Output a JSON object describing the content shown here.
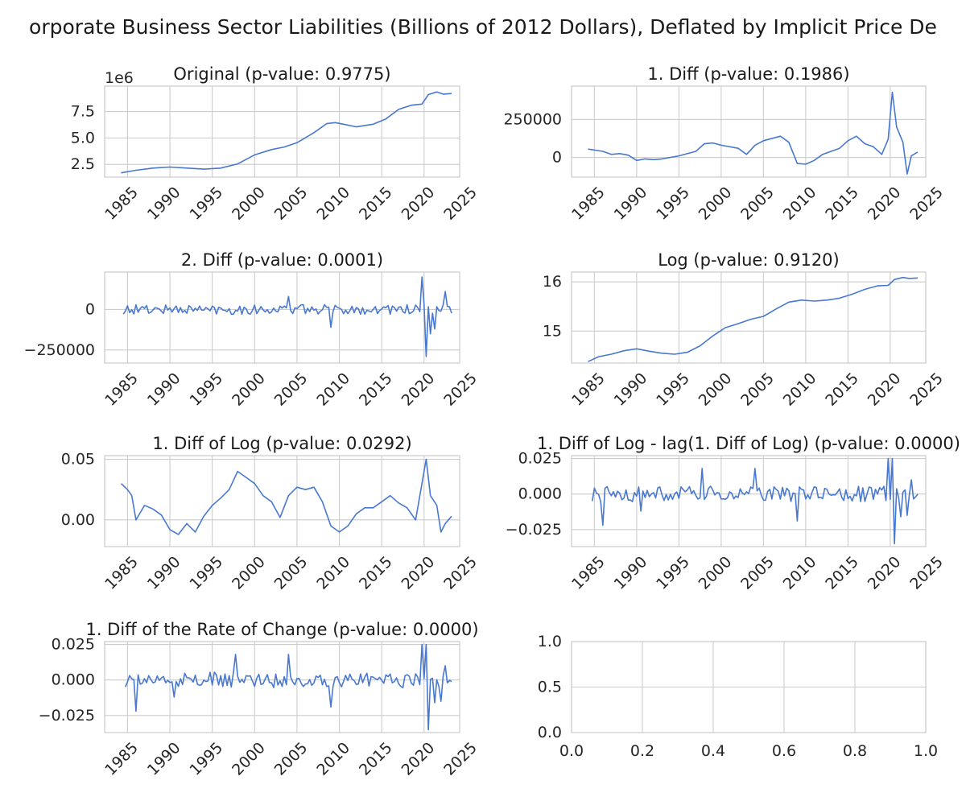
{
  "figure": {
    "suptitle": "orporate Business Sector Liabilities  (Billions of 2012 Dollars), Deflated by Implicit Price De",
    "line_color": "#4878cf",
    "grid_color": "#cccccc"
  },
  "chart_data": [
    {
      "type": "line",
      "title": "Original (p-value: 0.9775)",
      "x_range": [
        1984.25,
        2023.25
      ],
      "xlim": [
        1982.3,
        2024.2
      ],
      "ylim": [
        1300000,
        9900000
      ],
      "y_ticks": [
        2500000,
        5000000,
        7500000
      ],
      "y_tick_labels": [
        "2.5",
        "5.0",
        "7.5"
      ],
      "offset_text": "1e6",
      "x_ticks": [
        1985,
        1990,
        1995,
        2000,
        2005,
        2010,
        2015,
        2020,
        2025
      ],
      "x_tick_labels": [
        "1985",
        "1990",
        "1995",
        "2000",
        "2005",
        "2010",
        "2015",
        "2020",
        "2025"
      ],
      "series_points": [
        [
          1984.25,
          1700000
        ],
        [
          1986,
          1950000
        ],
        [
          1988,
          2150000
        ],
        [
          1990,
          2250000
        ],
        [
          1992,
          2150000
        ],
        [
          1994,
          2050000
        ],
        [
          1996,
          2150000
        ],
        [
          1998,
          2550000
        ],
        [
          2000,
          3400000
        ],
        [
          2002,
          3900000
        ],
        [
          2003.5,
          4150000
        ],
        [
          2005,
          4550000
        ],
        [
          2007,
          5500000
        ],
        [
          2008.5,
          6350000
        ],
        [
          2009.5,
          6450000
        ],
        [
          2010.5,
          6300000
        ],
        [
          2012,
          6050000
        ],
        [
          2014,
          6300000
        ],
        [
          2015.5,
          6800000
        ],
        [
          2017,
          7700000
        ],
        [
          2018.5,
          8100000
        ],
        [
          2019.75,
          8200000
        ],
        [
          2020.5,
          9100000
        ],
        [
          2021.5,
          9350000
        ],
        [
          2022.25,
          9150000
        ],
        [
          2023.25,
          9200000
        ]
      ]
    },
    {
      "type": "line",
      "title": "1. Diff (p-value: 0.1986)",
      "x_range": [
        1984.25,
        2023.25
      ],
      "xlim": [
        1982.3,
        2024.2
      ],
      "ylim": [
        -130000,
        470000
      ],
      "y_ticks": [
        0,
        250000
      ],
      "y_tick_labels": [
        "0",
        "250000"
      ],
      "x_ticks": [
        1985,
        1990,
        1995,
        2000,
        2005,
        2010,
        2015,
        2020,
        2025
      ],
      "x_tick_labels": [
        "1985",
        "1990",
        "1995",
        "2000",
        "2005",
        "2010",
        "2015",
        "2020",
        "2025"
      ],
      "series_points": [
        [
          1984.25,
          55000
        ],
        [
          1986,
          40000
        ],
        [
          1987,
          20000
        ],
        [
          1988,
          25000
        ],
        [
          1989,
          15000
        ],
        [
          1990,
          -20000
        ],
        [
          1991,
          -10000
        ],
        [
          1992,
          -15000
        ],
        [
          1993,
          -10000
        ],
        [
          1995,
          10000
        ],
        [
          1997,
          40000
        ],
        [
          1998,
          90000
        ],
        [
          1999,
          95000
        ],
        [
          2000,
          80000
        ],
        [
          2002,
          60000
        ],
        [
          2003,
          20000
        ],
        [
          2004,
          80000
        ],
        [
          2005,
          110000
        ],
        [
          2007,
          140000
        ],
        [
          2008,
          100000
        ],
        [
          2009,
          -40000
        ],
        [
          2010,
          -45000
        ],
        [
          2011,
          -20000
        ],
        [
          2012,
          20000
        ],
        [
          2013,
          40000
        ],
        [
          2014,
          60000
        ],
        [
          2015,
          110000
        ],
        [
          2016,
          140000
        ],
        [
          2017,
          90000
        ],
        [
          2018,
          70000
        ],
        [
          2019,
          20000
        ],
        [
          2019.75,
          120000
        ],
        [
          2020.25,
          430000
        ],
        [
          2020.75,
          200000
        ],
        [
          2021.5,
          100000
        ],
        [
          2022,
          -110000
        ],
        [
          2022.5,
          10000
        ],
        [
          2023.25,
          35000
        ]
      ]
    },
    {
      "type": "line",
      "title": "2. Diff (p-value: 0.0001)",
      "x_range": [
        1984.5,
        2023.25
      ],
      "xlim": [
        1982.3,
        2024.2
      ],
      "ylim": [
        -330000,
        230000
      ],
      "y_ticks": [
        -250000,
        0
      ],
      "y_tick_labels": [
        "−250000",
        "0"
      ],
      "x_ticks": [
        1985,
        1990,
        1995,
        2000,
        2005,
        2010,
        2015,
        2020,
        2025
      ],
      "x_tick_labels": [
        "1985",
        "1990",
        "1995",
        "2000",
        "2005",
        "2010",
        "2015",
        "2020",
        "2025"
      ],
      "noise_amplitude": 30000,
      "spikes": [
        [
          2004,
          80000
        ],
        [
          2009,
          -110000
        ],
        [
          2019.75,
          200000
        ],
        [
          2020.25,
          -290000
        ],
        [
          2020.75,
          -150000
        ],
        [
          2021.25,
          -120000
        ],
        [
          2022.5,
          110000
        ]
      ]
    },
    {
      "type": "line",
      "title": "Log (p-value: 0.9120)",
      "x_range": [
        1984.25,
        2023.25
      ],
      "xlim": [
        1982.3,
        2024.2
      ],
      "ylim": [
        14.35,
        16.2
      ],
      "y_ticks": [
        15,
        16
      ],
      "y_tick_labels": [
        "15",
        "16"
      ],
      "x_ticks": [
        1985,
        1990,
        1995,
        2000,
        2005,
        2010,
        2015,
        2020,
        2025
      ],
      "x_tick_labels": [
        "1985",
        "1990",
        "1995",
        "2000",
        "2005",
        "2010",
        "2015",
        "2020",
        "2025"
      ],
      "series_points": [
        [
          1984.25,
          14.38
        ],
        [
          1985.5,
          14.48
        ],
        [
          1987,
          14.53
        ],
        [
          1988.5,
          14.6
        ],
        [
          1990,
          14.64
        ],
        [
          1991.5,
          14.59
        ],
        [
          1993,
          14.55
        ],
        [
          1994.5,
          14.53
        ],
        [
          1996,
          14.57
        ],
        [
          1997.5,
          14.7
        ],
        [
          1999,
          14.9
        ],
        [
          2000.5,
          15.07
        ],
        [
          2002,
          15.15
        ],
        [
          2003.5,
          15.24
        ],
        [
          2005,
          15.3
        ],
        [
          2006.5,
          15.45
        ],
        [
          2008,
          15.59
        ],
        [
          2009.5,
          15.63
        ],
        [
          2011,
          15.61
        ],
        [
          2012.5,
          15.63
        ],
        [
          2014,
          15.67
        ],
        [
          2015.5,
          15.75
        ],
        [
          2017,
          15.85
        ],
        [
          2018.5,
          15.92
        ],
        [
          2019.75,
          15.93
        ],
        [
          2020.5,
          16.05
        ],
        [
          2021.5,
          16.09
        ],
        [
          2022.25,
          16.07
        ],
        [
          2023.25,
          16.08
        ]
      ]
    },
    {
      "type": "line",
      "title": "1. Diff of Log (p-value: 0.0292)",
      "x_range": [
        1984.25,
        2023.25
      ],
      "xlim": [
        1982.3,
        2024.2
      ],
      "ylim": [
        -0.022,
        0.053
      ],
      "y_ticks": [
        0.0,
        0.05
      ],
      "y_tick_labels": [
        "0.00",
        "0.05"
      ],
      "x_ticks": [
        1985,
        1990,
        1995,
        2000,
        2005,
        2010,
        2015,
        2020,
        2025
      ],
      "x_tick_labels": [
        "1985",
        "1990",
        "1995",
        "2000",
        "2005",
        "2010",
        "2015",
        "2020",
        "2025"
      ],
      "series_points": [
        [
          1984.25,
          0.03
        ],
        [
          1985,
          0.025
        ],
        [
          1985.5,
          0.02
        ],
        [
          1986,
          0.0
        ],
        [
          1987,
          0.012
        ],
        [
          1988,
          0.009
        ],
        [
          1989,
          0.004
        ],
        [
          1990,
          -0.008
        ],
        [
          1991,
          -0.012
        ],
        [
          1992,
          -0.003
        ],
        [
          1993,
          -0.01
        ],
        [
          1994,
          0.003
        ],
        [
          1995,
          0.012
        ],
        [
          1996,
          0.018
        ],
        [
          1997,
          0.025
        ],
        [
          1998,
          0.04
        ],
        [
          1999,
          0.035
        ],
        [
          2000,
          0.03
        ],
        [
          2001,
          0.02
        ],
        [
          2002,
          0.015
        ],
        [
          2003,
          0.002
        ],
        [
          2004,
          0.02
        ],
        [
          2005,
          0.027
        ],
        [
          2006,
          0.025
        ],
        [
          2007,
          0.027
        ],
        [
          2008,
          0.015
        ],
        [
          2009,
          -0.005
        ],
        [
          2010,
          -0.01
        ],
        [
          2011,
          -0.005
        ],
        [
          2012,
          0.005
        ],
        [
          2013,
          0.01
        ],
        [
          2014,
          0.01
        ],
        [
          2015,
          0.015
        ],
        [
          2016,
          0.02
        ],
        [
          2017,
          0.014
        ],
        [
          2018,
          0.01
        ],
        [
          2019,
          0.0
        ],
        [
          2020.25,
          0.05
        ],
        [
          2020.75,
          0.02
        ],
        [
          2021.5,
          0.012
        ],
        [
          2022,
          -0.01
        ],
        [
          2022.5,
          -0.003
        ],
        [
          2023.25,
          0.003
        ]
      ]
    },
    {
      "type": "line",
      "title": "1. Diff of Log - lag(1. Diff of Log) (p-value: 0.0000)",
      "x_range": [
        1984.75,
        2023.25
      ],
      "xlim": [
        1982.3,
        2024.2
      ],
      "ylim": [
        -0.037,
        0.027
      ],
      "y_ticks": [
        -0.025,
        0.0,
        0.025
      ],
      "y_tick_labels": [
        "−0.025",
        "0.000",
        "0.025"
      ],
      "x_ticks": [
        1985,
        1990,
        1995,
        2000,
        2005,
        2010,
        2015,
        2020,
        2025
      ],
      "x_tick_labels": [
        "1985",
        "1990",
        "1995",
        "2000",
        "2005",
        "2010",
        "2015",
        "2020",
        "2025"
      ],
      "noise_amplitude": 0.0055,
      "spikes": [
        [
          1986,
          -0.022
        ],
        [
          1990.5,
          -0.012
        ],
        [
          1997.75,
          0.018
        ],
        [
          2004,
          0.018
        ],
        [
          2009,
          -0.019
        ],
        [
          2019.75,
          0.025
        ],
        [
          2020.25,
          0.025
        ],
        [
          2020.5,
          -0.035
        ],
        [
          2021.25,
          -0.016
        ],
        [
          2022,
          -0.015
        ],
        [
          2022.5,
          0.01
        ]
      ]
    },
    {
      "type": "line",
      "title": "1. Diff of the Rate of Change (p-value: 0.0000)",
      "x_range": [
        1984.75,
        2023.25
      ],
      "xlim": [
        1982.3,
        2024.2
      ],
      "ylim": [
        -0.037,
        0.027
      ],
      "y_ticks": [
        -0.025,
        0.0,
        0.025
      ],
      "y_tick_labels": [
        "−0.025",
        "0.000",
        "0.025"
      ],
      "x_ticks": [
        1985,
        1990,
        1995,
        2000,
        2005,
        2010,
        2015,
        2020,
        2025
      ],
      "x_tick_labels": [
        "1985",
        "1990",
        "1995",
        "2000",
        "2005",
        "2010",
        "2015",
        "2020",
        "2025"
      ],
      "noise_amplitude": 0.0055,
      "spikes": [
        [
          1986,
          -0.022
        ],
        [
          1990.5,
          -0.012
        ],
        [
          1997.75,
          0.018
        ],
        [
          2004,
          0.018
        ],
        [
          2009,
          -0.019
        ],
        [
          2019.75,
          0.025
        ],
        [
          2020.25,
          0.025
        ],
        [
          2020.5,
          -0.035
        ],
        [
          2021.25,
          -0.016
        ],
        [
          2022,
          -0.015
        ],
        [
          2022.5,
          0.01
        ]
      ]
    },
    {
      "type": "line",
      "title": "",
      "empty": true,
      "xlim": [
        0,
        1
      ],
      "ylim": [
        0,
        1
      ],
      "x_ticks": [
        0,
        0.2,
        0.4,
        0.6,
        0.8,
        1.0
      ],
      "x_tick_labels": [
        "0.0",
        "0.2",
        "0.4",
        "0.6",
        "0.8",
        "1.0"
      ],
      "y_ticks": [
        0,
        0.5,
        1.0
      ],
      "y_tick_labels": [
        "0.0",
        "0.5",
        "1.0"
      ]
    }
  ]
}
